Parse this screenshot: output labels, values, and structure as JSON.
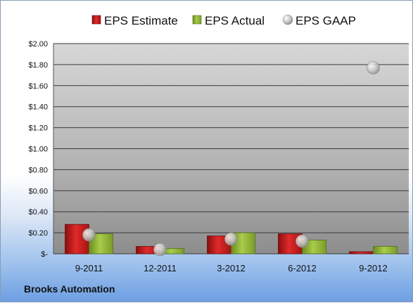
{
  "chart_data": {
    "type": "bar",
    "title": "",
    "xlabel": "",
    "ylabel": "",
    "categories": [
      "9-2011",
      "12-2011",
      "3-2012",
      "6-2012",
      "9-2012"
    ],
    "series": [
      {
        "name": "EPS Estimate",
        "kind": "bar",
        "color": "#c01818",
        "values": [
          0.28,
          0.07,
          0.17,
          0.19,
          0.02
        ]
      },
      {
        "name": "EPS Actual",
        "kind": "bar",
        "color": "#8fb531",
        "values": [
          0.19,
          0.05,
          0.2,
          0.13,
          0.07
        ]
      },
      {
        "name": "EPS GAAP",
        "kind": "point",
        "color": "#c8c8c8",
        "values": [
          0.18,
          0.04,
          0.14,
          0.12,
          1.77
        ]
      }
    ],
    "ylim": [
      0,
      2.0
    ],
    "yticks": [
      "$-",
      "$0.20",
      "$0.40",
      "$0.60",
      "$0.80",
      "$1.00",
      "$1.20",
      "$1.40",
      "$1.60",
      "$1.80",
      "$2.00"
    ],
    "grid": true,
    "legend_position": "top"
  },
  "footer": {
    "company": "Brooks Automation"
  }
}
